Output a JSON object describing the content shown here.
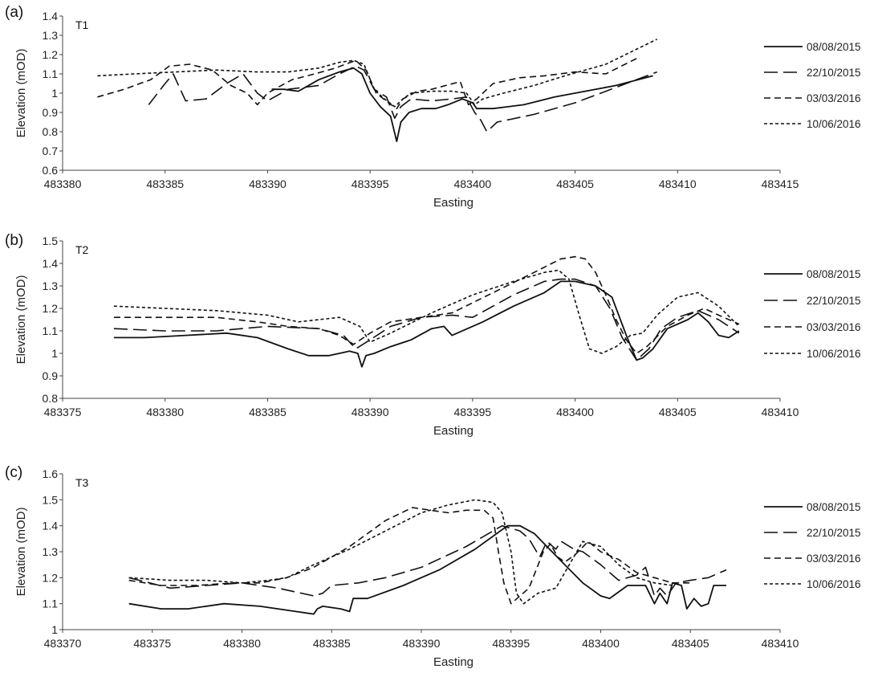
{
  "chart_data": [
    {
      "type": "line",
      "panel_label": "(a)",
      "title": "T1",
      "xlabel": "Easting",
      "ylabel": "Elevation (mOD)",
      "xlim": [
        483380,
        483415
      ],
      "ylim": [
        0.6,
        1.4
      ],
      "xticks": [
        483380,
        483385,
        483390,
        483395,
        483400,
        483405,
        483410,
        483415
      ],
      "yticks": [
        "0.6",
        "0.7",
        "0.8",
        "0.9",
        "1",
        "1.1",
        "1.2",
        "1.3",
        "1.4"
      ],
      "legend_position": "right",
      "grid": false,
      "series": [
        {
          "name": "08/08/2015",
          "dash": "solid",
          "x": [
            483390.2,
            483390.8,
            483391.5,
            483392.5,
            483393.5,
            483394.2,
            483394.6,
            483395.0,
            483395.5,
            483396.0,
            483396.3,
            483396.5,
            483396.9,
            483397.5,
            483398.2,
            483398.8,
            483399.5,
            483400.0,
            483400.2,
            483401.0,
            483402.5,
            483404.0,
            483405.5,
            483407.0,
            483408.8
          ],
          "y": [
            1.02,
            1.02,
            1.01,
            1.07,
            1.11,
            1.13,
            1.1,
            1.0,
            0.93,
            0.88,
            0.75,
            0.85,
            0.9,
            0.92,
            0.92,
            0.94,
            0.97,
            0.95,
            0.92,
            0.92,
            0.94,
            0.98,
            1.01,
            1.04,
            1.09
          ]
        },
        {
          "name": "22/10/2015",
          "dash": "longdash",
          "x": [
            483384.2,
            483385.0,
            483385.4,
            483386.0,
            483387.0,
            483388.0,
            483388.8,
            483389.5,
            483390.0,
            483391.0,
            483392.5,
            483393.5,
            483394.3,
            483394.7,
            483395.2,
            483395.8,
            483396.2,
            483396.5,
            483397.0,
            483398.0,
            483399.0,
            483399.7,
            483400.1,
            483400.4,
            483400.7,
            483401.2,
            483403.0,
            483405.0,
            483407.0,
            483409.0
          ],
          "y": [
            0.94,
            1.05,
            1.1,
            0.96,
            0.97,
            1.05,
            1.1,
            1.0,
            0.96,
            1.02,
            1.04,
            1.1,
            1.14,
            1.12,
            1.02,
            0.98,
            0.87,
            0.93,
            0.97,
            0.96,
            0.97,
            0.98,
            0.9,
            0.86,
            0.8,
            0.85,
            0.89,
            0.95,
            1.03,
            1.11
          ]
        },
        {
          "name": "03/03/2016",
          "dash": "dash",
          "x": [
            483381.7,
            483383.0,
            483384.3,
            483385.2,
            483386.2,
            483387.3,
            483388.2,
            483389.0,
            483389.5,
            483390.0,
            483390.5,
            483391.2,
            483392.3,
            483393.3,
            483394.3,
            483394.8,
            483395.3,
            483395.9,
            483396.3,
            483396.6,
            483397.3,
            483398.0,
            483398.7,
            483399.4,
            483399.8,
            483400.2,
            483401.0,
            483402.3,
            483403.5,
            483405.0,
            483406.5,
            483408.0
          ],
          "y": [
            0.98,
            1.02,
            1.07,
            1.14,
            1.15,
            1.12,
            1.04,
            1.0,
            0.94,
            1.0,
            1.03,
            1.07,
            1.1,
            1.13,
            1.17,
            1.12,
            1.0,
            0.95,
            0.92,
            0.97,
            1.01,
            1.02,
            1.04,
            1.06,
            0.94,
            0.97,
            1.05,
            1.08,
            1.09,
            1.11,
            1.1,
            1.18
          ]
        },
        {
          "name": "10/06/2016",
          "dash": "dot",
          "x": [
            483381.7,
            483383.5,
            483385.5,
            483387.5,
            483389.5,
            483391.0,
            483392.5,
            483393.5,
            483394.2,
            483394.7,
            483395.2,
            483395.7,
            483396.2,
            483396.6,
            483397.0,
            483398.0,
            483399.0,
            483399.7,
            483400.1,
            483400.5,
            483401.5,
            483403.0,
            483404.5,
            483406.5,
            483409.0
          ],
          "y": [
            1.09,
            1.1,
            1.11,
            1.12,
            1.11,
            1.11,
            1.13,
            1.16,
            1.17,
            1.15,
            1.02,
            0.97,
            0.93,
            0.97,
            1.0,
            1.01,
            1.01,
            1.0,
            0.94,
            0.97,
            1.0,
            1.04,
            1.09,
            1.15,
            1.28
          ]
        }
      ]
    },
    {
      "type": "line",
      "panel_label": "(b)",
      "title": "T2",
      "xlabel": "Easting",
      "ylabel": "Elevation (mOD)",
      "xlim": [
        483375,
        483410
      ],
      "ylim": [
        0.8,
        1.5
      ],
      "xticks": [
        483375,
        483380,
        483385,
        483390,
        483395,
        483400,
        483405,
        483410
      ],
      "yticks": [
        "0.8",
        "0.9",
        "1",
        "1.1",
        "1.2",
        "1.3",
        "1.4",
        "1.5"
      ],
      "legend_position": "right",
      "grid": false,
      "series": [
        {
          "name": "08/08/2015",
          "dash": "solid",
          "x": [
            483377.5,
            483379.0,
            483381.0,
            483383.0,
            483384.5,
            483386.0,
            483387.0,
            483388.0,
            483389.0,
            483389.4,
            483389.6,
            483389.8,
            483390.2,
            483391.0,
            483392.0,
            483393.0,
            483393.6,
            483394.0,
            483395.5,
            483397.0,
            483398.5,
            483399.3,
            483400.0,
            483401.0,
            483401.8,
            483402.5,
            483403.0,
            483403.3,
            483403.8,
            483404.5,
            483405.5,
            483406.0,
            483406.5,
            483407.0,
            483407.5,
            483408.0
          ],
          "y": [
            1.07,
            1.07,
            1.08,
            1.09,
            1.07,
            1.02,
            0.99,
            0.99,
            1.01,
            1.0,
            0.94,
            0.99,
            1.0,
            1.03,
            1.06,
            1.11,
            1.12,
            1.08,
            1.14,
            1.21,
            1.27,
            1.32,
            1.32,
            1.3,
            1.25,
            1.08,
            0.97,
            0.98,
            1.02,
            1.11,
            1.15,
            1.18,
            1.14,
            1.08,
            1.07,
            1.1
          ]
        },
        {
          "name": "22/10/2015",
          "dash": "longdash",
          "x": [
            483377.5,
            483380.0,
            483382.5,
            483385.0,
            483387.5,
            483388.7,
            483389.3,
            483390.0,
            483391.0,
            483392.5,
            483394.0,
            483395.0,
            483397.0,
            483398.5,
            483399.3,
            483400.0,
            483401.0,
            483401.7,
            483402.3,
            483403.0,
            483403.6,
            483404.2,
            483405.0,
            483406.0,
            483407.0,
            483408.0
          ],
          "y": [
            1.11,
            1.1,
            1.1,
            1.12,
            1.11,
            1.08,
            1.02,
            1.06,
            1.12,
            1.16,
            1.17,
            1.16,
            1.26,
            1.32,
            1.33,
            1.33,
            1.3,
            1.2,
            1.07,
            0.97,
            1.02,
            1.11,
            1.16,
            1.19,
            1.15,
            1.09
          ]
        },
        {
          "name": "03/03/2016",
          "dash": "dash",
          "x": [
            483377.5,
            483380.0,
            483382.5,
            483384.5,
            483386.0,
            483387.5,
            483388.5,
            483389.2,
            483390.0,
            483391.0,
            483392.5,
            483394.0,
            483396.0,
            483398.0,
            483399.3,
            483400.0,
            483400.5,
            483401.0,
            483401.5,
            483402.0,
            483402.5,
            483403.0,
            483403.5,
            483404.5,
            483405.5,
            483406.3,
            483407.0,
            483408.0
          ],
          "y": [
            1.16,
            1.16,
            1.16,
            1.14,
            1.12,
            1.11,
            1.08,
            1.04,
            1.09,
            1.14,
            1.16,
            1.18,
            1.27,
            1.36,
            1.42,
            1.43,
            1.42,
            1.36,
            1.26,
            1.15,
            1.06,
            1.0,
            1.03,
            1.12,
            1.17,
            1.2,
            1.17,
            1.13
          ]
        },
        {
          "name": "10/06/2016",
          "dash": "dot",
          "x": [
            483377.5,
            483380.0,
            483382.5,
            483385.0,
            483386.5,
            483387.5,
            483388.5,
            483389.5,
            483390.0,
            483391.0,
            483393.0,
            483395.0,
            483397.0,
            483398.5,
            483399.2,
            483399.7,
            483400.2,
            483400.7,
            483401.3,
            483402.0,
            483402.7,
            483403.3,
            483404.0,
            483405.0,
            483406.0,
            483407.0,
            483408.0
          ],
          "y": [
            1.21,
            1.2,
            1.19,
            1.17,
            1.14,
            1.15,
            1.16,
            1.12,
            1.05,
            1.09,
            1.18,
            1.26,
            1.32,
            1.36,
            1.37,
            1.33,
            1.17,
            1.02,
            1.0,
            1.03,
            1.08,
            1.09,
            1.17,
            1.25,
            1.27,
            1.21,
            1.12
          ]
        }
      ]
    },
    {
      "type": "line",
      "panel_label": "(c)",
      "title": "T3",
      "xlabel": "Easting",
      "ylabel": "Elevation (mOD)",
      "xlim": [
        483370,
        483410
      ],
      "ylim": [
        1.0,
        1.6
      ],
      "xticks": [
        483370,
        483375,
        483380,
        483385,
        483390,
        483395,
        483400,
        483405,
        483410
      ],
      "yticks": [
        "1",
        "1.1",
        "1.2",
        "1.3",
        "1.4",
        "1.5",
        "1.6"
      ],
      "legend_position": "right",
      "grid": false,
      "series": [
        {
          "name": "08/08/2015",
          "dash": "solid",
          "x": [
            483373.7,
            483375.5,
            483377.0,
            483379.0,
            483381.0,
            483383.0,
            483384.0,
            483384.2,
            483384.5,
            483385.5,
            483386.0,
            483386.2,
            483387.0,
            483389.0,
            483391.0,
            483393.0,
            483394.2,
            483394.8,
            483395.5,
            483396.3,
            483397.0,
            483398.0,
            483399.0,
            483400.0,
            483400.5,
            483401.5,
            483402.5,
            483403.0,
            483403.3,
            483403.7,
            483404.0,
            483404.5,
            483404.8,
            483405.2,
            483405.6,
            483406.0,
            483406.3,
            483407.0
          ],
          "y": [
            1.1,
            1.08,
            1.08,
            1.1,
            1.09,
            1.07,
            1.06,
            1.08,
            1.09,
            1.08,
            1.07,
            1.12,
            1.12,
            1.17,
            1.23,
            1.31,
            1.37,
            1.4,
            1.4,
            1.37,
            1.32,
            1.25,
            1.18,
            1.13,
            1.12,
            1.17,
            1.17,
            1.1,
            1.14,
            1.1,
            1.18,
            1.17,
            1.08,
            1.12,
            1.09,
            1.1,
            1.17,
            1.17
          ]
        },
        {
          "name": "22/10/2015",
          "dash": "longdash",
          "x": [
            483373.7,
            483376.0,
            483378.0,
            483380.0,
            483382.0,
            483384.0,
            483384.5,
            483385.0,
            483386.5,
            483388.0,
            483390.0,
            483392.5,
            483394.5,
            483395.5,
            483396.0,
            483396.6,
            483397.0,
            483397.5,
            483397.8,
            483398.5,
            483399.0,
            483400.0,
            483401.0,
            483402.0,
            483402.5,
            483403.0,
            483403.3,
            483403.7,
            483404.2,
            483405.0,
            483406.0,
            483407.0
          ],
          "y": [
            1.2,
            1.16,
            1.17,
            1.18,
            1.16,
            1.13,
            1.14,
            1.17,
            1.18,
            1.2,
            1.24,
            1.32,
            1.4,
            1.38,
            1.35,
            1.28,
            1.34,
            1.31,
            1.34,
            1.31,
            1.3,
            1.25,
            1.19,
            1.21,
            1.24,
            1.13,
            1.16,
            1.13,
            1.18,
            1.19,
            1.2,
            1.23
          ]
        },
        {
          "name": "03/03/2016",
          "dash": "dash",
          "x": [
            483373.7,
            483375.5,
            483377.5,
            483379.5,
            483381.0,
            483382.5,
            483384.0,
            483386.0,
            483388.0,
            483389.5,
            483390.5,
            483391.5,
            483392.5,
            483393.5,
            483394.0,
            483394.3,
            483394.6,
            483395.0,
            483396.0,
            483396.8,
            483397.2,
            483397.6,
            483398.0,
            483398.6,
            483399.3,
            483400.0,
            483401.0,
            483402.0,
            483403.0,
            483404.0,
            483405.0
          ],
          "y": [
            1.19,
            1.17,
            1.17,
            1.18,
            1.18,
            1.2,
            1.24,
            1.32,
            1.42,
            1.47,
            1.46,
            1.45,
            1.46,
            1.46,
            1.43,
            1.3,
            1.18,
            1.1,
            1.16,
            1.3,
            1.33,
            1.28,
            1.26,
            1.29,
            1.34,
            1.3,
            1.27,
            1.22,
            1.2,
            1.18,
            1.18
          ]
        },
        {
          "name": "10/06/2016",
          "dash": "dot",
          "x": [
            483373.7,
            483376.0,
            483378.0,
            483380.0,
            483381.5,
            483382.5,
            483384.0,
            483386.0,
            483388.0,
            483390.0,
            483391.5,
            483393.0,
            483394.0,
            483394.5,
            483395.0,
            483395.3,
            483395.7,
            483396.5,
            483397.0,
            483397.5,
            483398.0,
            483399.0,
            483400.0,
            483401.0,
            483402.0,
            483403.0,
            483404.0
          ],
          "y": [
            1.2,
            1.19,
            1.19,
            1.18,
            1.19,
            1.2,
            1.25,
            1.31,
            1.38,
            1.45,
            1.48,
            1.5,
            1.49,
            1.45,
            1.3,
            1.14,
            1.1,
            1.14,
            1.15,
            1.16,
            1.22,
            1.34,
            1.32,
            1.25,
            1.2,
            1.18,
            1.17
          ]
        }
      ]
    }
  ]
}
